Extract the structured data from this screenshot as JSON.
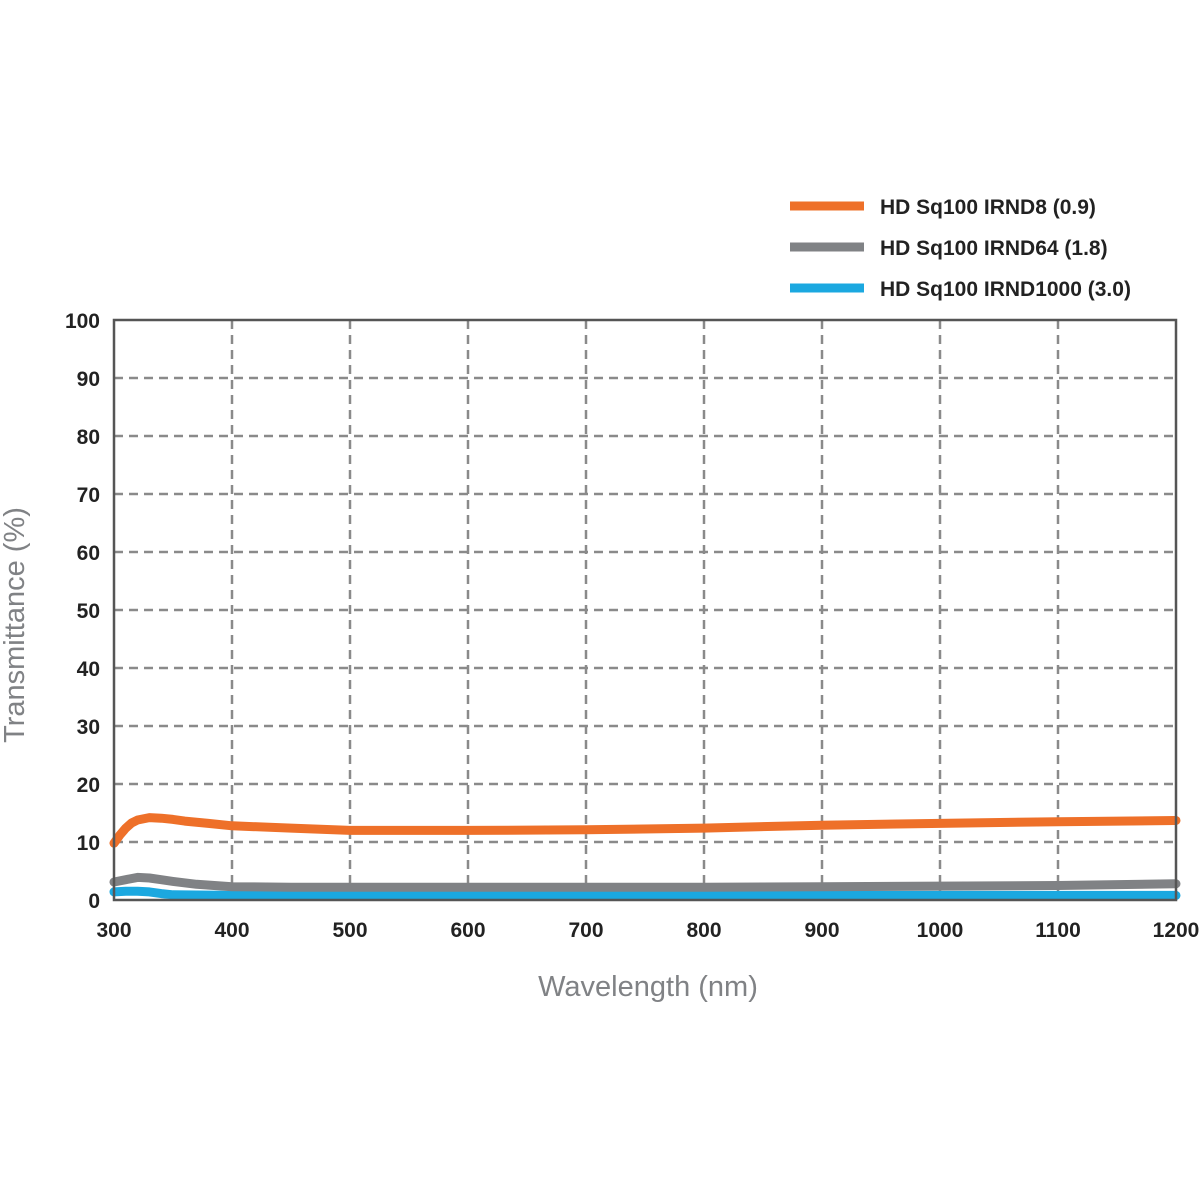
{
  "chart_data": {
    "type": "line",
    "title": "",
    "xlabel": "Wavelength (nm)",
    "ylabel": "Transmittance (%)",
    "xlim": [
      300,
      1200
    ],
    "ylim": [
      0,
      100
    ],
    "x_ticks": [
      300,
      400,
      500,
      600,
      700,
      800,
      900,
      1000,
      1100,
      1200
    ],
    "y_ticks": [
      0,
      10,
      20,
      30,
      40,
      50,
      60,
      70,
      80,
      90,
      100
    ],
    "grid": true,
    "legend_position": "top-right",
    "series": [
      {
        "name": "HD Sq100 IRND8 (0.9)",
        "color": "#ee7029",
        "x": [
          300,
          305,
          310,
          315,
          320,
          330,
          340,
          350,
          360,
          380,
          400,
          450,
          500,
          600,
          700,
          800,
          900,
          1000,
          1100,
          1200
        ],
        "y": [
          9.8,
          11.2,
          12.4,
          13.3,
          13.8,
          14.2,
          14.1,
          13.9,
          13.6,
          13.2,
          12.8,
          12.4,
          12.0,
          12.0,
          12.1,
          12.4,
          12.9,
          13.2,
          13.5,
          13.7
        ]
      },
      {
        "name": "HD Sq100 IRND64 (1.8)",
        "color": "#808285",
        "x": [
          300,
          310,
          320,
          330,
          340,
          350,
          370,
          400,
          450,
          500,
          600,
          700,
          800,
          900,
          1000,
          1100,
          1200
        ],
        "y": [
          3.1,
          3.5,
          3.9,
          3.8,
          3.5,
          3.2,
          2.7,
          2.3,
          2.2,
          2.2,
          2.2,
          2.2,
          2.2,
          2.3,
          2.4,
          2.5,
          2.8
        ]
      },
      {
        "name": "HD Sq100 IRND1000 (3.0)",
        "color": "#1ba8e0",
        "x": [
          300,
          310,
          320,
          330,
          340,
          350,
          400,
          500,
          600,
          700,
          800,
          900,
          1000,
          1100,
          1200
        ],
        "y": [
          1.4,
          1.5,
          1.5,
          1.4,
          1.1,
          0.9,
          0.8,
          0.8,
          0.8,
          0.8,
          0.8,
          0.8,
          0.8,
          0.8,
          0.8
        ]
      }
    ]
  }
}
